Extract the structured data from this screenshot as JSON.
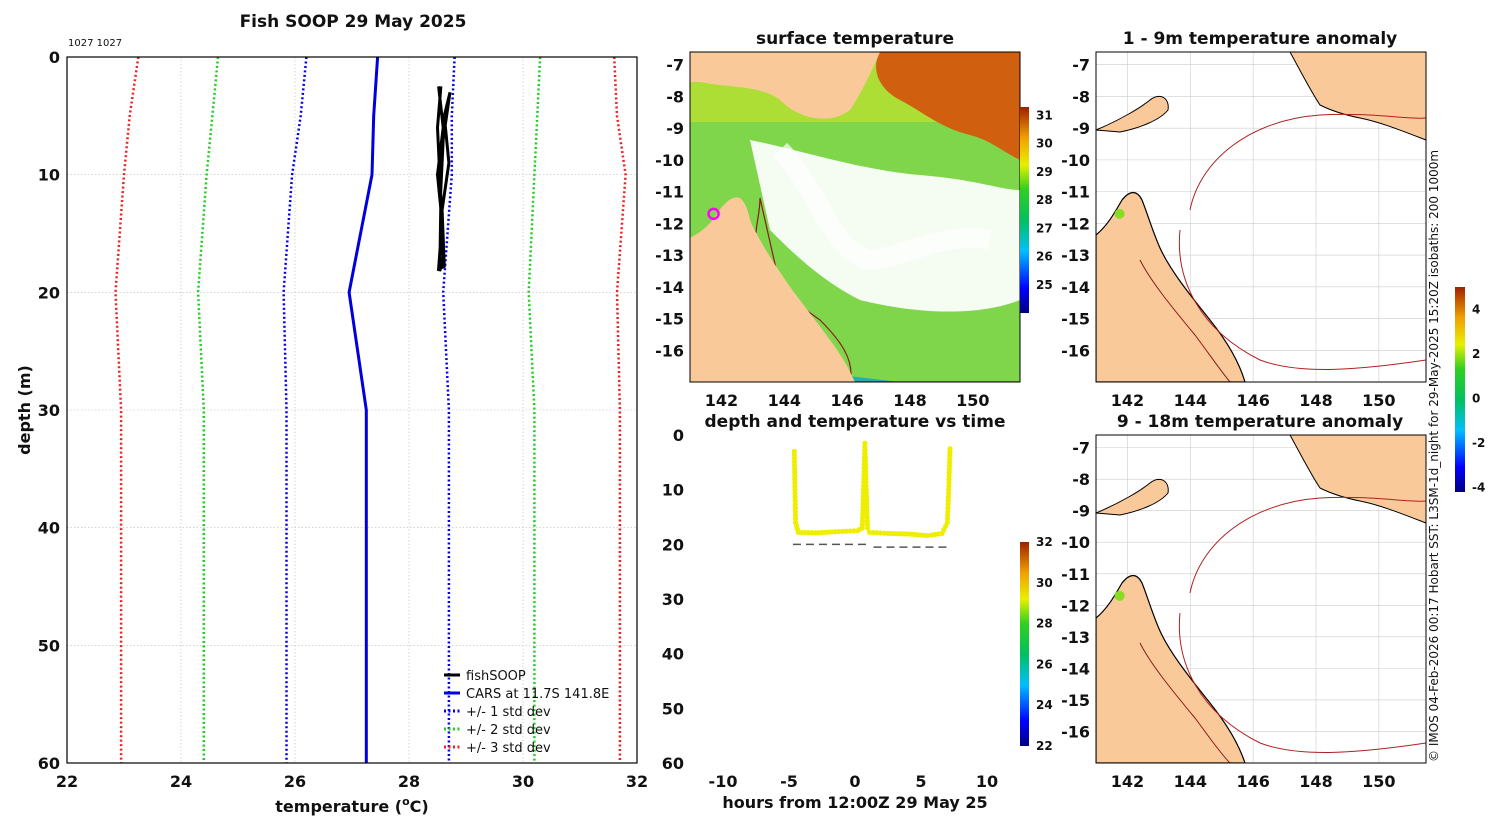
{
  "copyright_text": "© IMOS 04-Feb-2026 00:17 Hobart SST: L3SM-1d_night for 29-May-2025 15:20Z isobaths: 200  1000m",
  "chart_data": [
    {
      "id": "profile",
      "type": "line",
      "title": "Fish SOOP 29 May 2025",
      "annotation": "1027 1027",
      "xlabel": "temperature (",
      "xlabel_sup": "o",
      "xlabel_end": "C)",
      "ylabel": "depth (m)",
      "xlim": [
        22,
        32
      ],
      "ylim": [
        0,
        60
      ],
      "xticks": [
        22,
        24,
        26,
        28,
        30,
        32
      ],
      "yticks": [
        0,
        10,
        20,
        30,
        40,
        50,
        60
      ],
      "grid": true,
      "legend_position": "bottom-right",
      "series": [
        {
          "name": "CARS at 11.7S 141.8E",
          "style": "solid",
          "color": "#0000dd",
          "points": [
            [
              27.45,
              0
            ],
            [
              27.38,
              5
            ],
            [
              27.35,
              10
            ],
            [
              26.95,
              20
            ],
            [
              27.25,
              30
            ],
            [
              27.25,
              40
            ],
            [
              27.25,
              50
            ],
            [
              27.25,
              60
            ]
          ]
        },
        {
          "name": "+/- 1 std dev",
          "style": "dotted",
          "color": "#0000ee",
          "points": [
            [
              26.2,
              0
            ],
            [
              26.1,
              5
            ],
            [
              25.95,
              10
            ],
            [
              25.8,
              20
            ],
            [
              25.85,
              30
            ],
            [
              25.85,
              40
            ],
            [
              25.85,
              50
            ],
            [
              25.85,
              60
            ]
          ]
        },
        {
          "name": "+/- 1 std dev",
          "style": "dotted",
          "color": "#0000ee",
          "legend": false,
          "points": [
            [
              28.8,
              0
            ],
            [
              28.75,
              5
            ],
            [
              28.75,
              10
            ],
            [
              28.6,
              20
            ],
            [
              28.7,
              30
            ],
            [
              28.7,
              40
            ],
            [
              28.7,
              50
            ],
            [
              28.7,
              60
            ]
          ]
        },
        {
          "name": "+/- 2 std dev",
          "style": "dotted",
          "color": "#22cc22",
          "points": [
            [
              24.65,
              0
            ],
            [
              24.55,
              5
            ],
            [
              24.45,
              10
            ],
            [
              24.3,
              20
            ],
            [
              24.4,
              30
            ],
            [
              24.4,
              40
            ],
            [
              24.4,
              50
            ],
            [
              24.4,
              60
            ]
          ]
        },
        {
          "name": "+/- 2 std dev",
          "style": "dotted",
          "color": "#22cc22",
          "legend": false,
          "points": [
            [
              30.3,
              0
            ],
            [
              30.25,
              5
            ],
            [
              30.2,
              10
            ],
            [
              30.1,
              20
            ],
            [
              30.2,
              30
            ],
            [
              30.2,
              40
            ],
            [
              30.2,
              50
            ],
            [
              30.2,
              60
            ]
          ]
        },
        {
          "name": "+/- 3 std dev",
          "style": "dotted",
          "color": "#ee2222",
          "points": [
            [
              23.25,
              0
            ],
            [
              23.1,
              5
            ],
            [
              23.0,
              10
            ],
            [
              22.85,
              20
            ],
            [
              22.95,
              30
            ],
            [
              22.95,
              40
            ],
            [
              22.95,
              50
            ],
            [
              22.95,
              60
            ]
          ]
        },
        {
          "name": "+/- 3 std dev",
          "style": "dotted",
          "color": "#ee2222",
          "legend": false,
          "points": [
            [
              31.6,
              0
            ],
            [
              31.65,
              5
            ],
            [
              31.8,
              10
            ],
            [
              31.65,
              20
            ],
            [
              31.7,
              30
            ],
            [
              31.7,
              40
            ],
            [
              31.7,
              50
            ],
            [
              31.7,
              60
            ]
          ]
        },
        {
          "name": "fishSOOP",
          "style": "solid",
          "color": "#000000",
          "points": [
            [
              28.52,
              2.5
            ],
            [
              28.6,
              6
            ],
            [
              28.5,
              10
            ],
            [
              28.58,
              14
            ],
            [
              28.52,
              18
            ],
            [
              28.62,
              17.8
            ],
            [
              28.58,
              13
            ],
            [
              28.7,
              9
            ],
            [
              28.62,
              5
            ],
            [
              28.72,
              3
            ],
            [
              28.6,
              7
            ],
            [
              28.55,
              12
            ],
            [
              28.6,
              17
            ],
            [
              28.54,
              18.2
            ],
            [
              28.56,
              12
            ],
            [
              28.5,
              6
            ],
            [
              28.56,
              2.5
            ]
          ]
        }
      ]
    },
    {
      "id": "sst",
      "type": "heatmap",
      "title": "surface temperature",
      "xticks": [
        142,
        144,
        146,
        148,
        150
      ],
      "yticks": [
        -7,
        -8,
        -9,
        -10,
        -11,
        -12,
        -13,
        -14,
        -15,
        -16
      ],
      "xlim": [
        141,
        151.5
      ],
      "ylim": [
        -17,
        -6.6
      ],
      "colorbar_ticks": [
        25,
        26,
        27,
        28,
        29,
        30,
        31
      ],
      "colorbar_range": [
        24,
        31.3
      ],
      "marker": {
        "lon": 141.75,
        "lat": -11.7,
        "color": "#ff00ff"
      }
    },
    {
      "id": "timeseries",
      "type": "scatter",
      "title": "depth and temperature vs time",
      "xlabel": "hours from 12:00Z 29 May 25",
      "xlim": [
        -12.5,
        12.5
      ],
      "ylim": [
        0,
        60
      ],
      "xticks": [
        -10,
        -5,
        0,
        5,
        10
      ],
      "yticks": [
        0,
        10,
        20,
        30,
        40,
        50,
        60
      ],
      "colorbar_ticks": [
        22,
        24,
        26,
        28,
        30,
        32
      ],
      "colorbar_range": [
        22,
        32
      ],
      "point_color": "#eeee00",
      "bottom_depth_line": [
        [
          -4.7,
          20
        ],
        [
          0.9,
          20
        ],
        [
          1.4,
          20.5
        ],
        [
          7.3,
          20.5
        ]
      ],
      "trace": [
        [
          -4.6,
          3
        ],
        [
          -4.55,
          10
        ],
        [
          -4.5,
          16
        ],
        [
          -4.3,
          17.8
        ],
        [
          -3,
          17.9
        ],
        [
          -1.5,
          17.7
        ],
        [
          0.2,
          17.5
        ],
        [
          0.55,
          17
        ],
        [
          0.65,
          10
        ],
        [
          0.75,
          1.5
        ],
        [
          0.85,
          10
        ],
        [
          0.95,
          17
        ],
        [
          1.1,
          17.8
        ],
        [
          2.5,
          18
        ],
        [
          4,
          18.1
        ],
        [
          5.5,
          18.4
        ],
        [
          6.6,
          18
        ],
        [
          7.0,
          16
        ],
        [
          7.1,
          10
        ],
        [
          7.2,
          2.5
        ]
      ]
    },
    {
      "id": "anom1",
      "type": "heatmap",
      "title": "1 - 9m temperature anomaly",
      "xticks": [
        142,
        144,
        146,
        148,
        150
      ],
      "yticks": [
        -7,
        -8,
        -9,
        -10,
        -11,
        -12,
        -13,
        -14,
        -15,
        -16
      ],
      "xlim": [
        141,
        151.5
      ],
      "ylim": [
        -17,
        -6.6
      ],
      "marker": {
        "lon": 141.75,
        "lat": -11.7,
        "color": "#88dd22"
      }
    },
    {
      "id": "anom2",
      "type": "heatmap",
      "title": "9 - 18m temperature anomaly",
      "xticks": [
        142,
        144,
        146,
        148,
        150
      ],
      "yticks": [
        -7,
        -8,
        -9,
        -10,
        -11,
        -12,
        -13,
        -14,
        -15,
        -16
      ],
      "xlim": [
        141,
        151.5
      ],
      "ylim": [
        -17,
        -6.6
      ],
      "marker": {
        "lon": 141.75,
        "lat": -11.7,
        "color": "#88dd22"
      },
      "colorbar_ticks": [
        -4,
        -2,
        0,
        2,
        4
      ],
      "colorbar_range": [
        -4.2,
        5
      ]
    }
  ]
}
